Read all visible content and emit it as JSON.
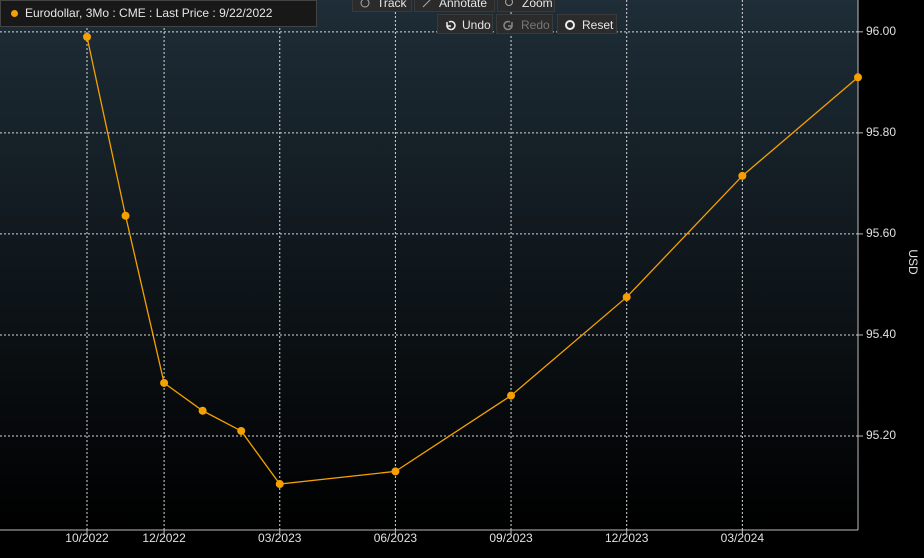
{
  "chart_data": {
    "type": "line",
    "x": [
      "2022-10",
      "2022-11",
      "2022-12",
      "2023-01",
      "2023-02",
      "2023-03",
      "2023-06",
      "2023-09",
      "2023-12",
      "2024-03",
      "2024-06"
    ],
    "series": [
      {
        "name": "Eurodollar, 3Mo : CME : Last Price : 9/22/2022",
        "color": "#f5a000",
        "values": [
          95.99,
          95.636,
          95.305,
          95.25,
          95.21,
          95.105,
          95.13,
          95.28,
          95.475,
          95.715,
          95.91
        ]
      }
    ],
    "xticks": [
      {
        "value": "2022-10",
        "label": "10/2022"
      },
      {
        "value": "2022-12",
        "label": "12/2022"
      },
      {
        "value": "2023-03",
        "label": "03/2023"
      },
      {
        "value": "2023-06",
        "label": "06/2023"
      },
      {
        "value": "2023-09",
        "label": "09/2023"
      },
      {
        "value": "2023-12",
        "label": "12/2023"
      },
      {
        "value": "2024-03",
        "label": "03/2024"
      }
    ],
    "ylim": [
      95.014,
      96.063
    ],
    "yticks": [
      {
        "value": 96,
        "label": "96.00"
      },
      {
        "value": 95.8,
        "label": "95.80"
      },
      {
        "value": 95.6,
        "label": "95.60"
      },
      {
        "value": 95.4,
        "label": "95.40"
      },
      {
        "value": 95.2,
        "label": "95.20"
      }
    ],
    "ylabel": "USD",
    "grid": true
  },
  "toolbar": {
    "row1": [
      "Track",
      "Annotate",
      "Zoom"
    ],
    "row2": [
      "Undo",
      "Redo",
      "Reset"
    ]
  }
}
